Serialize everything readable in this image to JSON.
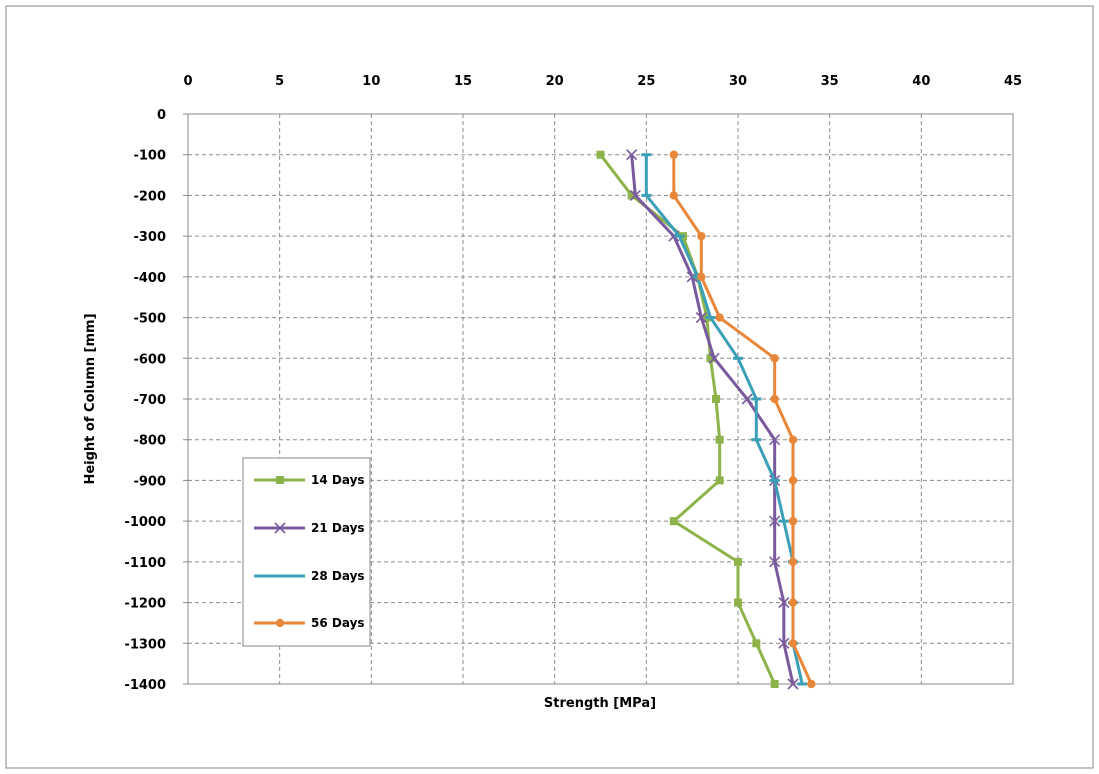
{
  "chart_data": {
    "type": "line",
    "title": "",
    "xlabel": "Strength [MPa]",
    "ylabel": "Height of Column [mm]",
    "xlim": [
      0,
      45
    ],
    "ylim": [
      -1400,
      0
    ],
    "x_ticks": [
      0,
      5,
      10,
      15,
      20,
      25,
      30,
      35,
      40,
      45
    ],
    "y_ticks": [
      0,
      -100,
      -200,
      -300,
      -400,
      -500,
      -600,
      -700,
      -800,
      -900,
      -1000,
      -1100,
      -1200,
      -1300,
      -1400
    ],
    "x_axis_position": "top",
    "grid": true,
    "legend_position": "bottom-left",
    "heights": [
      -100,
      -200,
      -300,
      -400,
      -500,
      -600,
      -700,
      -800,
      -900,
      -1000,
      -1100,
      -1200,
      -1300,
      -1400
    ],
    "series": [
      {
        "name": "14 Days",
        "color": "#8db34a",
        "marker": "square",
        "values": [
          22.5,
          24.2,
          27.0,
          27.8,
          28.3,
          28.5,
          28.8,
          29.0,
          29.0,
          26.5,
          30.0,
          30.0,
          31.0,
          32.0
        ]
      },
      {
        "name": "21 Days",
        "color": "#7a5a9e",
        "marker": "x",
        "values": [
          24.2,
          24.4,
          26.5,
          27.5,
          28.0,
          28.7,
          30.5,
          32.0,
          32.0,
          32.0,
          32.0,
          32.5,
          32.5,
          33.0
        ]
      },
      {
        "name": "28 Days",
        "color": "#3c9fb8",
        "marker": "dash",
        "values": [
          25.0,
          25.0,
          26.8,
          27.8,
          28.5,
          30.0,
          31.0,
          31.0,
          32.0,
          32.5,
          33.0,
          33.0,
          33.0,
          33.5
        ]
      },
      {
        "name": "56 Days",
        "color": "#e8873a",
        "marker": "circle",
        "values": [
          26.5,
          26.5,
          28.0,
          28.0,
          29.0,
          32.0,
          32.0,
          33.0,
          33.0,
          33.0,
          33.0,
          33.0,
          33.0,
          34.0
        ]
      }
    ]
  }
}
